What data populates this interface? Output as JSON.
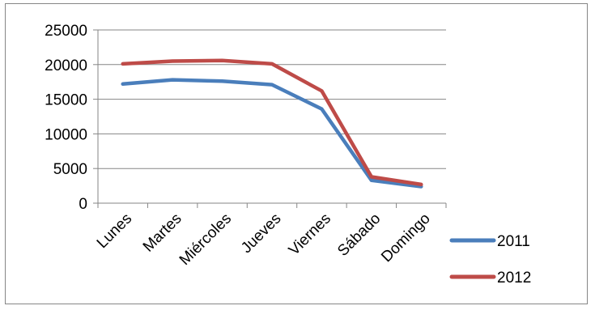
{
  "chart_data": {
    "type": "line",
    "categories": [
      "Lunes",
      "Martes",
      "Miércoles",
      "Jueves",
      "Viernes",
      "Sábado",
      "Domingo"
    ],
    "series": [
      {
        "name": "2011",
        "color": "#4a7ebb",
        "values": [
          17200,
          17800,
          17600,
          17100,
          13600,
          3300,
          2400
        ]
      },
      {
        "name": "2012",
        "color": "#be4b48",
        "values": [
          20100,
          20500,
          20600,
          20100,
          16200,
          3800,
          2700
        ]
      }
    ],
    "title": "",
    "xlabel": "",
    "ylabel": "",
    "ylim": [
      0,
      25000
    ],
    "yticks": [
      "0",
      "5000",
      "10000",
      "15000",
      "20000",
      "25000"
    ],
    "grid": true,
    "legend_position": "right"
  }
}
